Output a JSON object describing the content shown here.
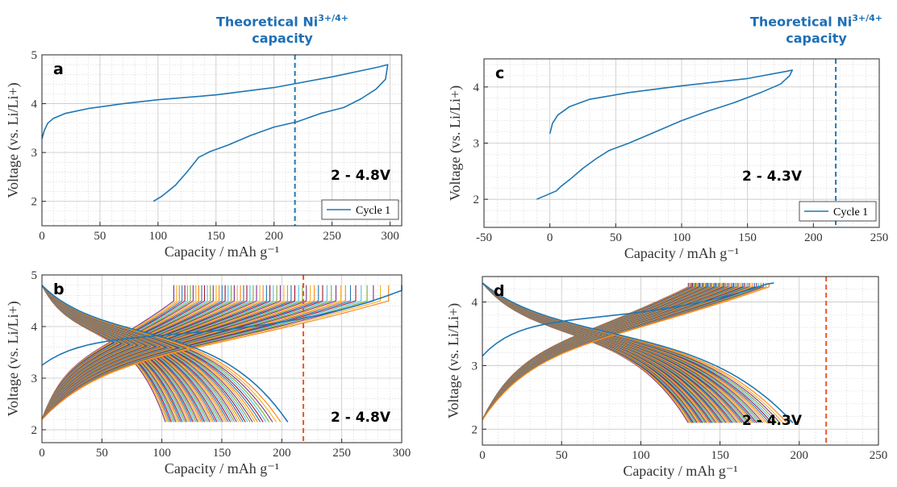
{
  "annotations": {
    "left": {
      "line1": "Theoretical Ni",
      "sup": "3+/4+",
      "line2": "capacity"
    },
    "right": {
      "line1": "Theoretical Ni",
      "sup": "3+/4+",
      "line2": "capacity"
    }
  },
  "chart_data": [
    {
      "panel": "a",
      "type": "line",
      "xlabel": "Capacity / mAh g⁻¹",
      "ylabel": "Voltage (vs. Li/Li+)",
      "xlim": [
        0,
        310
      ],
      "ylim": [
        1.5,
        5
      ],
      "xticks": [
        0,
        50,
        100,
        150,
        200,
        250,
        300
      ],
      "yticks": [
        2,
        3,
        4,
        5
      ],
      "voltage_window": "2 - 4.8V",
      "grid": true,
      "legend_position": "bottom-right",
      "theoretical_capacity": 218,
      "theoretical_line_color": "#1f77b4",
      "series": [
        {
          "name": "Cycle 1",
          "color": "#1f77b4",
          "points": [
            [
              0,
              3.28
            ],
            [
              2,
              3.45
            ],
            [
              5,
              3.6
            ],
            [
              10,
              3.7
            ],
            [
              20,
              3.8
            ],
            [
              40,
              3.9
            ],
            [
              70,
              4.0
            ],
            [
              100,
              4.08
            ],
            [
              150,
              4.18
            ],
            [
              200,
              4.33
            ],
            [
              250,
              4.55
            ],
            [
              290,
              4.75
            ],
            [
              298,
              4.8
            ],
            [
              296,
              4.5
            ],
            [
              288,
              4.3
            ],
            [
              275,
              4.1
            ],
            [
              260,
              3.92
            ],
            [
              240,
              3.8
            ],
            [
              220,
              3.63
            ],
            [
              200,
              3.52
            ],
            [
              180,
              3.35
            ],
            [
              160,
              3.15
            ],
            [
              145,
              3.02
            ],
            [
              135,
              2.9
            ],
            [
              125,
              2.6
            ],
            [
              115,
              2.33
            ],
            [
              103,
              2.1
            ],
            [
              96,
              2.0
            ]
          ]
        }
      ]
    },
    {
      "panel": "b",
      "type": "line",
      "xlabel": "Capacity / mAh g⁻¹",
      "ylabel": "Voltage (vs. Li/Li+)",
      "xlim": [
        0,
        300
      ],
      "ylim": [
        1.75,
        5
      ],
      "xticks": [
        0,
        50,
        100,
        150,
        200,
        250,
        300
      ],
      "yticks": [
        2,
        3,
        4,
        5
      ],
      "voltage_window": "2 - 4.8V",
      "grid": true,
      "theoretical_capacity": 218,
      "theoretical_line_color": "#e8562a",
      "cycles": 60,
      "cycle_colors": [
        "#1f77b4",
        "#ff7f0e",
        "#edb120",
        "#7e2f8e",
        "#77ac30",
        "#4dbeee",
        "#a2142f"
      ],
      "first_cycle_charge_end": 300,
      "first_cycle_discharge_end": 205,
      "last_cycle_charge_end": 110,
      "last_cycle_discharge_end": 103
    },
    {
      "panel": "c",
      "type": "line",
      "xlabel": "Capacity / mAh g⁻¹",
      "ylabel": "Voltage (vs. Li/Li+)",
      "xlim": [
        -50,
        250
      ],
      "ylim": [
        1.5,
        4.5
      ],
      "xticks": [
        -50,
        0,
        50,
        100,
        150,
        200,
        250
      ],
      "yticks": [
        2,
        3,
        4
      ],
      "voltage_window": "2 - 4.3V",
      "grid": true,
      "legend_position": "bottom-right",
      "theoretical_capacity": 217,
      "theoretical_line_color": "#1f77b4",
      "series": [
        {
          "name": "Cycle 1",
          "color": "#1f77b4",
          "points": [
            [
              0,
              3.17
            ],
            [
              2,
              3.35
            ],
            [
              6,
              3.5
            ],
            [
              15,
              3.65
            ],
            [
              30,
              3.78
            ],
            [
              60,
              3.9
            ],
            [
              100,
              4.02
            ],
            [
              150,
              4.15
            ],
            [
              180,
              4.28
            ],
            [
              184,
              4.3
            ],
            [
              182,
              4.2
            ],
            [
              175,
              4.05
            ],
            [
              160,
              3.9
            ],
            [
              140,
              3.72
            ],
            [
              120,
              3.57
            ],
            [
              100,
              3.4
            ],
            [
              80,
              3.2
            ],
            [
              60,
              3.0
            ],
            [
              45,
              2.87
            ],
            [
              35,
              2.72
            ],
            [
              25,
              2.55
            ],
            [
              15,
              2.35
            ],
            [
              8,
              2.22
            ],
            [
              5,
              2.15
            ],
            [
              0,
              2.1
            ],
            [
              -10,
              2.0
            ]
          ]
        }
      ]
    },
    {
      "panel": "d",
      "type": "line",
      "xlabel": "Capacity / mAh g⁻¹",
      "ylabel": "Voltage (vs. Li/Li+)",
      "xlim": [
        0,
        250
      ],
      "ylim": [
        1.75,
        4.4
      ],
      "xticks": [
        0,
        50,
        100,
        150,
        200,
        250
      ],
      "yticks": [
        2,
        3,
        4
      ],
      "voltage_window": "2 - 4.3V",
      "grid": true,
      "theoretical_capacity": 217,
      "theoretical_line_color": "#e8562a",
      "cycles": 60,
      "cycle_colors": [
        "#1f77b4",
        "#ff7f0e",
        "#edb120",
        "#7e2f8e",
        "#77ac30",
        "#4dbeee",
        "#a2142f"
      ],
      "first_cycle_charge_end": 184,
      "first_cycle_discharge_end": 196,
      "last_cycle_charge_end": 130,
      "last_cycle_discharge_end": 130
    }
  ]
}
